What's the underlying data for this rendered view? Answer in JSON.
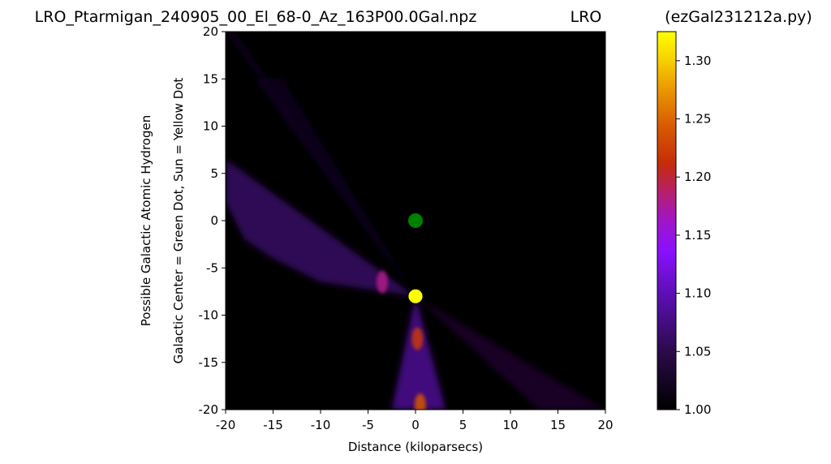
{
  "chart_data": {
    "type": "heatmap",
    "title_left": "LRO_Ptarmigan_240905_00_El_68-0_Az_163P00.0Gal.npz",
    "title_center": "LRO",
    "title_right": "(ezGal231212a.py)",
    "xlabel": "Distance (kiloparsecs)",
    "ylabel_line1": "Possible Galactic Atomic Hydrogen",
    "ylabel_line2": "Galactic Center = Green Dot, Sun = Yellow Dot",
    "xlim": [
      -20,
      20
    ],
    "ylim": [
      -20,
      20
    ],
    "x_ticks": [
      -20,
      -15,
      -10,
      -5,
      0,
      5,
      10,
      15,
      20
    ],
    "y_ticks": [
      20,
      15,
      10,
      5,
      0,
      -5,
      -10,
      -15,
      -20
    ],
    "x_tick_labels": [
      "-20",
      "-15",
      "-10",
      "-5",
      "0",
      "5",
      "10",
      "15",
      "20"
    ],
    "y_tick_labels": [
      "20",
      "15",
      "10",
      "5",
      "0",
      "-5",
      "-10",
      "-15",
      "-20"
    ],
    "colorbar": {
      "range": [
        1.0,
        1.325
      ],
      "ticks": [
        1.0,
        1.05,
        1.1,
        1.15,
        1.2,
        1.25,
        1.3
      ],
      "tick_labels": [
        "1.00",
        "1.05",
        "1.10",
        "1.15",
        "1.20",
        "1.25",
        "1.30"
      ],
      "colormap": "gnuplot"
    },
    "galactic_center": {
      "x": 0,
      "y": 0,
      "color": "#008000"
    },
    "sun": {
      "x": 0,
      "y": -8,
      "color": "#ffff00"
    },
    "features": [
      {
        "name": "southern-fan",
        "points": [
          [
            0,
            -8
          ],
          [
            -2.5,
            -20
          ],
          [
            3.2,
            -20
          ]
        ],
        "level": 1.08
      },
      {
        "name": "western-fan",
        "points": [
          [
            0,
            -8
          ],
          [
            -20,
            6.5
          ],
          [
            -20,
            2
          ],
          [
            -18,
            -2
          ],
          [
            -15,
            -4
          ],
          [
            -10,
            -6.5
          ]
        ],
        "level": 1.06
      },
      {
        "name": "southeast-streak",
        "points": [
          [
            0,
            -8
          ],
          [
            20,
            -20
          ],
          [
            13,
            -20
          ]
        ],
        "level": 1.03
      },
      {
        "name": "northwest-streak",
        "points": [
          [
            0,
            -8
          ],
          [
            -20,
            20
          ],
          [
            -19,
            20
          ]
        ],
        "level": 1.02
      },
      {
        "name": "upper-west-fan",
        "points": [
          [
            0,
            -8
          ],
          [
            -17,
            15
          ],
          [
            -14,
            15
          ]
        ],
        "level": 1.02
      }
    ],
    "hot_spots": [
      {
        "x": -3.5,
        "y": -6.5,
        "level": 1.18
      },
      {
        "x": 0.2,
        "y": -12.5,
        "level": 1.22
      },
      {
        "x": 0.5,
        "y": -19.5,
        "level": 1.24
      }
    ]
  }
}
